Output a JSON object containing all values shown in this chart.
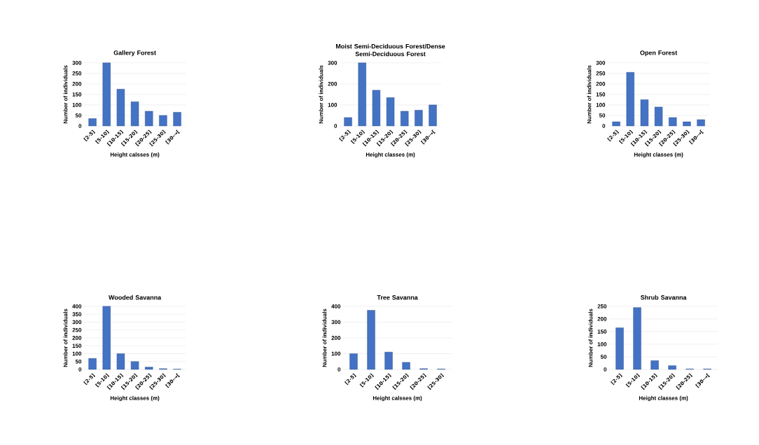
{
  "chart_data": [
    {
      "type": "bar",
      "title": "Gallery Forest",
      "xlabel": "Height calsses (m)",
      "ylabel": "Number of individuals",
      "categories": [
        "[2-5]",
        "[5-10]",
        "[10-15]",
        "[15-20]",
        "[20-25]",
        "[25-30]",
        "[30-→["
      ],
      "values": [
        35,
        300,
        175,
        115,
        70,
        50,
        65
      ],
      "color": "#4472c4",
      "ylim": [
        0,
        300
      ],
      "yticks": [
        0,
        50,
        100,
        150,
        200,
        250,
        300
      ],
      "grid": "y"
    },
    {
      "type": "bar",
      "title": "Moist Semi-Deciduous Forest/Dense Semi-Deciduous Forest",
      "xlabel": "Height classes (m)",
      "ylabel": "Number of individuals",
      "categories": [
        "[2-5]",
        "[5-10]",
        "[10-15]",
        "[15-20]",
        "[20-25]",
        "[25-30]",
        "[30-→["
      ],
      "values": [
        40,
        300,
        170,
        135,
        70,
        75,
        100
      ],
      "color": "#4472c4",
      "ylim": [
        0,
        300
      ],
      "yticks": [
        0,
        100,
        200,
        300
      ],
      "grid": "y"
    },
    {
      "type": "bar",
      "title": "Open Forest",
      "xlabel": "Height classes (m)",
      "ylabel": "Number of individuals",
      "categories": [
        "[2-5]",
        "[5-10]",
        "[10-15]",
        "[15-20]",
        "[20-25]",
        "[25-30]",
        "[30-→["
      ],
      "values": [
        20,
        255,
        125,
        90,
        40,
        20,
        30
      ],
      "color": "#4472c4",
      "ylim": [
        0,
        300
      ],
      "yticks": [
        0,
        50,
        100,
        150,
        200,
        250,
        300
      ],
      "grid": "y"
    },
    {
      "type": "bar",
      "title": "Wooded Savanna",
      "xlabel": "Height classes (m)",
      "ylabel": "Number of individuals",
      "categories": [
        "[2-5]",
        "[5-10]",
        "[10-15]",
        "[15-20]",
        "[20-25]",
        "[25-30]",
        "[30-→["
      ],
      "values": [
        70,
        400,
        100,
        50,
        15,
        5,
        2
      ],
      "color": "#4472c4",
      "ylim": [
        0,
        400
      ],
      "yticks": [
        0,
        50,
        100,
        150,
        200,
        250,
        300,
        350,
        400
      ],
      "grid": "y"
    },
    {
      "type": "bar",
      "title": "Tree Savanna",
      "xlabel": "Height calsses (m)",
      "ylabel": "Number of individuals",
      "categories": [
        "[2-5]",
        "[5-10]",
        "[10-15]",
        "[15-20]",
        "[20-25]",
        "[25-30]"
      ],
      "values": [
        100,
        375,
        110,
        45,
        5,
        3
      ],
      "color": "#4472c4",
      "ylim": [
        0,
        400
      ],
      "yticks": [
        0,
        100,
        200,
        300,
        400
      ],
      "grid": "y"
    },
    {
      "type": "bar",
      "title": "Shrub Savanna",
      "xlabel": "Height classes (m)",
      "ylabel": "Number of individuals",
      "categories": [
        "[2-5]",
        "[5-10]",
        "[10-15]",
        "[15-20]",
        "[20-25]",
        "[30-→["
      ],
      "values": [
        165,
        245,
        35,
        15,
        2,
        2
      ],
      "color": "#4472c4",
      "ylim": [
        0,
        250
      ],
      "yticks": [
        0,
        50,
        100,
        150,
        200,
        250
      ],
      "grid": "y"
    }
  ]
}
